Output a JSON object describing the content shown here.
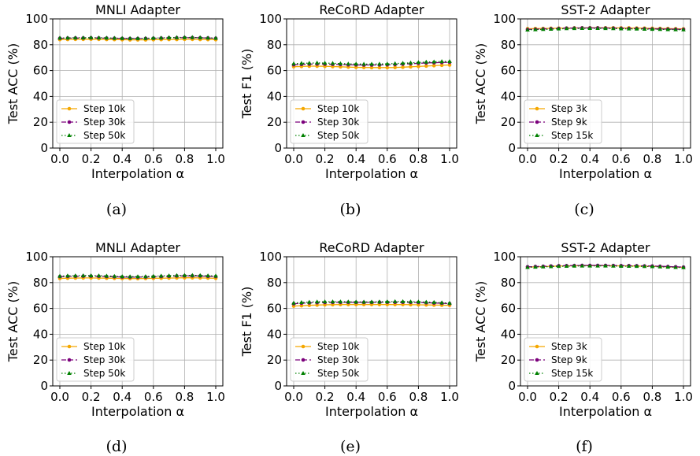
{
  "figure": {
    "captions": [
      "(a)",
      "(b)",
      "(c)",
      "(d)",
      "(e)",
      "(f)"
    ]
  },
  "colors": {
    "series_1": "#f5a800",
    "series_2": "#7b007b",
    "series_3": "#008000",
    "grid": "#b0b0b0"
  },
  "chart_data": [
    {
      "type": "line",
      "title": "MNLI Adapter",
      "xlabel": "Interpolation α",
      "ylabel": "Test ACC (%)",
      "xlim": [
        0,
        1
      ],
      "ylim": [
        0,
        100
      ],
      "xticks": [
        "0.0",
        "0.2",
        "0.4",
        "0.6",
        "0.8",
        "1.0"
      ],
      "yticks": [
        "0",
        "20",
        "40",
        "60",
        "80",
        "100"
      ],
      "grid": true,
      "legend_position": "lower-left",
      "x": [
        0,
        0.05,
        0.1,
        0.15,
        0.2,
        0.25,
        0.3,
        0.35,
        0.4,
        0.45,
        0.5,
        0.55,
        0.6,
        0.65,
        0.7,
        0.75,
        0.8,
        0.85,
        0.9,
        0.95,
        1.0
      ],
      "series": [
        {
          "name": "Step 10k",
          "style": "solid",
          "marker": "circle",
          "values": [
            84.0,
            84.1,
            84.2,
            84.2,
            84.3,
            84.2,
            84.1,
            84.0,
            83.9,
            83.8,
            83.8,
            83.8,
            83.9,
            84.0,
            84.1,
            84.1,
            84.2,
            84.2,
            84.1,
            84.0,
            83.9
          ]
        },
        {
          "name": "Step 30k",
          "style": "dashed",
          "marker": "circle",
          "values": [
            85.0,
            85.1,
            85.2,
            85.2,
            85.3,
            85.2,
            85.1,
            85.0,
            84.9,
            84.8,
            84.8,
            84.9,
            85.0,
            85.1,
            85.3,
            85.4,
            85.5,
            85.5,
            85.4,
            85.2,
            85.0
          ]
        },
        {
          "name": "Step 50k",
          "style": "dotted",
          "marker": "triangle",
          "values": [
            85.2,
            85.3,
            85.4,
            85.4,
            85.5,
            85.4,
            85.3,
            85.1,
            85.0,
            84.9,
            84.9,
            85.0,
            85.1,
            85.3,
            85.5,
            85.6,
            85.7,
            85.7,
            85.5,
            85.3,
            85.1
          ]
        }
      ]
    },
    {
      "type": "line",
      "title": "ReCoRD Adapter",
      "xlabel": "Interpolation α",
      "ylabel": "Test F1 (%)",
      "xlim": [
        0,
        1
      ],
      "ylim": [
        0,
        100
      ],
      "xticks": [
        "0.0",
        "0.2",
        "0.4",
        "0.6",
        "0.8",
        "1.0"
      ],
      "yticks": [
        "0",
        "20",
        "40",
        "60",
        "80",
        "100"
      ],
      "grid": true,
      "legend_position": "lower-left",
      "x": [
        0,
        0.05,
        0.1,
        0.15,
        0.2,
        0.25,
        0.3,
        0.35,
        0.4,
        0.45,
        0.5,
        0.55,
        0.6,
        0.65,
        0.7,
        0.75,
        0.8,
        0.85,
        0.9,
        0.95,
        1.0
      ],
      "series": [
        {
          "name": "Step 10k",
          "style": "solid",
          "marker": "circle",
          "values": [
            63.0,
            63.2,
            63.4,
            63.4,
            63.3,
            63.1,
            62.9,
            62.7,
            62.5,
            62.4,
            62.3,
            62.3,
            62.3,
            62.4,
            62.6,
            62.9,
            63.2,
            63.5,
            63.8,
            64.1,
            64.3
          ]
        },
        {
          "name": "Step 30k",
          "style": "dashed",
          "marker": "circle",
          "values": [
            64.5,
            64.8,
            65.0,
            65.1,
            65.0,
            64.9,
            64.7,
            64.5,
            64.4,
            64.3,
            64.3,
            64.4,
            64.5,
            64.7,
            65.0,
            65.3,
            65.6,
            65.9,
            66.1,
            66.3,
            66.4
          ]
        },
        {
          "name": "Step 50k",
          "style": "dotted",
          "marker": "triangle",
          "values": [
            65.3,
            65.6,
            65.8,
            65.9,
            65.8,
            65.6,
            65.4,
            65.2,
            65.1,
            65.0,
            65.0,
            65.1,
            65.2,
            65.4,
            65.7,
            66.0,
            66.3,
            66.6,
            66.8,
            67.0,
            67.1
          ]
        }
      ]
    },
    {
      "type": "line",
      "title": "SST-2 Adapter",
      "xlabel": "Interpolation α",
      "ylabel": "Test ACC (%)",
      "xlim": [
        0,
        1
      ],
      "ylim": [
        0,
        100
      ],
      "xticks": [
        "0.0",
        "0.2",
        "0.4",
        "0.6",
        "0.8",
        "1.0"
      ],
      "yticks": [
        "0",
        "20",
        "40",
        "60",
        "80",
        "100"
      ],
      "grid": true,
      "legend_position": "lower-left",
      "x": [
        0,
        0.05,
        0.1,
        0.15,
        0.2,
        0.25,
        0.3,
        0.35,
        0.4,
        0.45,
        0.5,
        0.55,
        0.6,
        0.65,
        0.7,
        0.75,
        0.8,
        0.85,
        0.9,
        0.95,
        1.0
      ],
      "series": [
        {
          "name": "Step 3k",
          "style": "solid",
          "marker": "circle",
          "values": [
            92.4,
            92.5,
            92.6,
            92.7,
            92.8,
            92.9,
            93.0,
            93.0,
            93.1,
            93.1,
            93.1,
            93.1,
            93.0,
            93.0,
            92.9,
            92.8,
            92.7,
            92.6,
            92.5,
            92.4,
            92.3
          ]
        },
        {
          "name": "Step 9k",
          "style": "dashed",
          "marker": "circle",
          "values": [
            91.8,
            92.0,
            92.2,
            92.4,
            92.6,
            92.8,
            92.9,
            93.0,
            93.0,
            93.0,
            92.9,
            92.8,
            92.7,
            92.6,
            92.5,
            92.4,
            92.3,
            92.2,
            92.1,
            92.0,
            91.9
          ]
        },
        {
          "name": "Step 15k",
          "style": "dotted",
          "marker": "triangle",
          "values": [
            91.5,
            91.7,
            91.9,
            92.1,
            92.3,
            92.5,
            92.6,
            92.7,
            92.7,
            92.7,
            92.6,
            92.5,
            92.4,
            92.3,
            92.2,
            92.1,
            92.0,
            91.9,
            91.8,
            91.7,
            91.6
          ]
        }
      ]
    },
    {
      "type": "line",
      "title": "MNLI Adapter",
      "xlabel": "Interpolation α",
      "ylabel": "Test ACC (%)",
      "xlim": [
        0,
        1
      ],
      "ylim": [
        0,
        100
      ],
      "xticks": [
        "0.0",
        "0.2",
        "0.4",
        "0.6",
        "0.8",
        "1.0"
      ],
      "yticks": [
        "0",
        "20",
        "40",
        "60",
        "80",
        "100"
      ],
      "grid": true,
      "legend_position": "lower-left",
      "x": [
        0,
        0.05,
        0.1,
        0.15,
        0.2,
        0.25,
        0.3,
        0.35,
        0.4,
        0.45,
        0.5,
        0.55,
        0.6,
        0.65,
        0.7,
        0.75,
        0.8,
        0.85,
        0.9,
        0.95,
        1.0
      ],
      "series": [
        {
          "name": "Step 10k",
          "style": "solid",
          "marker": "circle",
          "values": [
            83.2,
            83.4,
            83.5,
            83.6,
            83.6,
            83.5,
            83.4,
            83.3,
            83.2,
            83.1,
            83.1,
            83.2,
            83.3,
            83.4,
            83.5,
            83.6,
            83.7,
            83.7,
            83.6,
            83.5,
            83.3
          ]
        },
        {
          "name": "Step 30k",
          "style": "dashed",
          "marker": "circle",
          "values": [
            84.6,
            84.8,
            84.9,
            85.0,
            85.0,
            84.9,
            84.7,
            84.5,
            84.3,
            84.2,
            84.2,
            84.3,
            84.5,
            84.7,
            84.9,
            85.1,
            85.2,
            85.2,
            85.1,
            84.9,
            84.7
          ]
        },
        {
          "name": "Step 50k",
          "style": "dotted",
          "marker": "triangle",
          "values": [
            85.0,
            85.2,
            85.3,
            85.4,
            85.4,
            85.3,
            85.1,
            84.9,
            84.7,
            84.6,
            84.6,
            84.7,
            84.9,
            85.1,
            85.3,
            85.5,
            85.6,
            85.6,
            85.5,
            85.3,
            85.1
          ]
        }
      ]
    },
    {
      "type": "line",
      "title": "ReCoRD Adapter",
      "xlabel": "Interpolation α",
      "ylabel": "Test F1 (%)",
      "xlim": [
        0,
        1
      ],
      "ylim": [
        0,
        100
      ],
      "xticks": [
        "0.0",
        "0.2",
        "0.4",
        "0.6",
        "0.8",
        "1.0"
      ],
      "yticks": [
        "0",
        "20",
        "40",
        "60",
        "80",
        "100"
      ],
      "grid": true,
      "legend_position": "lower-left",
      "x": [
        0,
        0.05,
        0.1,
        0.15,
        0.2,
        0.25,
        0.3,
        0.35,
        0.4,
        0.45,
        0.5,
        0.55,
        0.6,
        0.65,
        0.7,
        0.75,
        0.8,
        0.85,
        0.9,
        0.95,
        1.0
      ],
      "series": [
        {
          "name": "Step 10k",
          "style": "solid",
          "marker": "circle",
          "values": [
            61.8,
            62.1,
            62.4,
            62.6,
            62.8,
            62.9,
            63.0,
            63.0,
            63.0,
            63.0,
            63.0,
            63.0,
            63.0,
            63.0,
            63.0,
            62.9,
            62.8,
            62.7,
            62.6,
            62.5,
            62.4
          ]
        },
        {
          "name": "Step 30k",
          "style": "dashed",
          "marker": "circle",
          "values": [
            63.6,
            64.0,
            64.3,
            64.5,
            64.6,
            64.7,
            64.7,
            64.7,
            64.7,
            64.7,
            64.7,
            64.8,
            64.8,
            64.8,
            64.8,
            64.7,
            64.6,
            64.4,
            64.2,
            64.0,
            63.7
          ]
        },
        {
          "name": "Step 50k",
          "style": "dotted",
          "marker": "triangle",
          "values": [
            64.2,
            64.6,
            64.9,
            65.1,
            65.2,
            65.2,
            65.2,
            65.1,
            65.0,
            65.0,
            65.0,
            65.1,
            65.2,
            65.3,
            65.3,
            65.2,
            65.1,
            64.9,
            64.7,
            64.4,
            64.1
          ]
        }
      ]
    },
    {
      "type": "line",
      "title": "SST-2 Adapter",
      "xlabel": "Interpolation α",
      "ylabel": "Test ACC (%)",
      "xlim": [
        0,
        1
      ],
      "ylim": [
        0,
        100
      ],
      "xticks": [
        "0.0",
        "0.2",
        "0.4",
        "0.6",
        "0.8",
        "1.0"
      ],
      "yticks": [
        "0",
        "20",
        "40",
        "60",
        "80",
        "100"
      ],
      "grid": true,
      "legend_position": "lower-left",
      "x": [
        0,
        0.05,
        0.1,
        0.15,
        0.2,
        0.25,
        0.3,
        0.35,
        0.4,
        0.45,
        0.5,
        0.55,
        0.6,
        0.65,
        0.7,
        0.75,
        0.8,
        0.85,
        0.9,
        0.95,
        1.0
      ],
      "series": [
        {
          "name": "Step 3k",
          "style": "solid",
          "marker": "circle",
          "values": [
            92.0,
            92.2,
            92.4,
            92.6,
            92.8,
            92.9,
            93.0,
            93.1,
            93.1,
            93.1,
            93.1,
            93.0,
            92.9,
            92.9,
            92.8,
            92.7,
            92.6,
            92.4,
            92.2,
            92.0,
            91.8
          ]
        },
        {
          "name": "Step 9k",
          "style": "dashed",
          "marker": "circle",
          "values": [
            92.2,
            92.4,
            92.6,
            92.8,
            93.0,
            93.1,
            93.2,
            93.3,
            93.3,
            93.3,
            93.3,
            93.2,
            93.1,
            93.1,
            93.0,
            92.9,
            92.8,
            92.6,
            92.4,
            92.2,
            92.0
          ]
        },
        {
          "name": "Step 15k",
          "style": "dotted",
          "marker": "triangle",
          "values": [
            91.8,
            92.0,
            92.2,
            92.4,
            92.6,
            92.7,
            92.8,
            92.9,
            92.9,
            92.9,
            92.9,
            92.8,
            92.7,
            92.7,
            92.6,
            92.5,
            92.4,
            92.2,
            92.0,
            91.8,
            91.6
          ]
        }
      ]
    }
  ]
}
